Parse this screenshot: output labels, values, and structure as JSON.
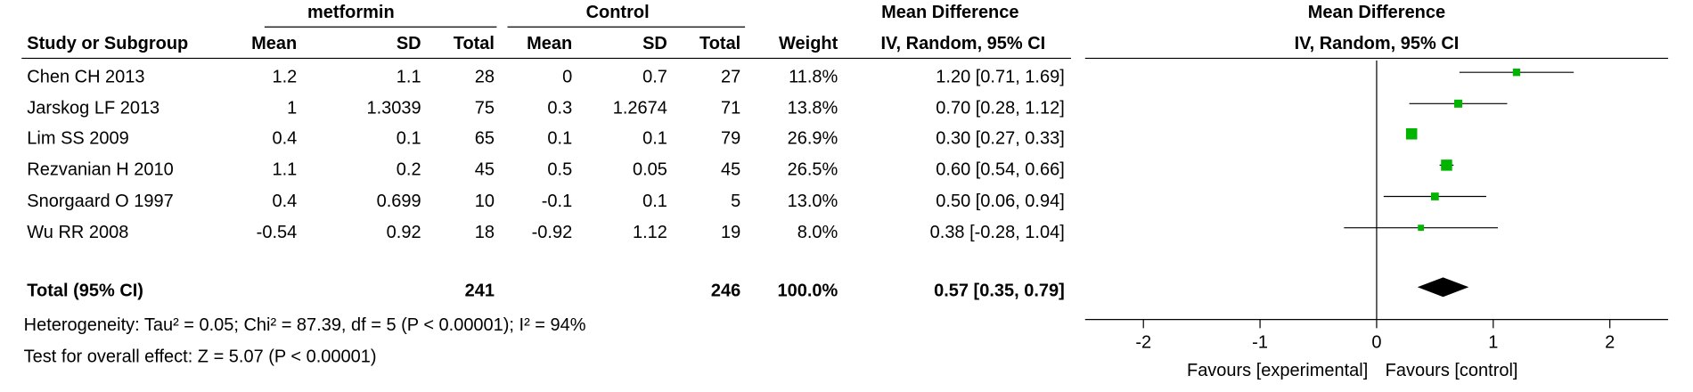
{
  "chart_data": {
    "type": "forest",
    "group_labels": [
      "metformin",
      "Control"
    ],
    "effect_header": "Mean Difference",
    "effect_method": "IV, Random, 95% CI",
    "column_headers": [
      "Study or Subgroup",
      "Mean",
      "SD",
      "Total",
      "Mean",
      "SD",
      "Total",
      "Weight"
    ],
    "studies": [
      "Chen CH 2013",
      "Jarskog LF 2013",
      "Lim SS 2009",
      "Rezvanian H 2010",
      "Snorgaard O 1997",
      "Wu RR 2008"
    ],
    "exp_mean": [
      1.2,
      1,
      0.4,
      1.1,
      0.4,
      -0.54
    ],
    "exp_sd": [
      1.1,
      1.3039,
      0.1,
      0.2,
      0.699,
      0.92
    ],
    "exp_total": [
      28,
      75,
      65,
      45,
      10,
      18
    ],
    "ctl_mean": [
      0,
      0.3,
      0.1,
      0.5,
      -0.1,
      -0.92
    ],
    "ctl_sd": [
      0.7,
      1.2674,
      0.1,
      0.05,
      0.1,
      1.12
    ],
    "ctl_total": [
      27,
      71,
      79,
      45,
      5,
      19
    ],
    "weight": [
      11.8,
      13.8,
      26.9,
      26.5,
      13.0,
      8.0
    ],
    "weight_labels": [
      "11.8%",
      "13.8%",
      "26.9%",
      "26.5%",
      "13.0%",
      "8.0%"
    ],
    "md": [
      1.2,
      0.7,
      0.3,
      0.6,
      0.5,
      0.38
    ],
    "ci_low": [
      0.71,
      0.28,
      0.27,
      0.54,
      0.06,
      -0.28
    ],
    "ci_high": [
      1.69,
      1.12,
      0.33,
      0.66,
      0.94,
      1.04
    ],
    "ci_labels": [
      "1.20 [0.71, 1.69]",
      "0.70 [0.28, 1.12]",
      "0.30 [0.27, 0.33]",
      "0.60 [0.54, 0.66]",
      "0.50 [0.06, 0.94]",
      "0.38 [-0.28, 1.04]"
    ],
    "total": {
      "label": "Total (95% CI)",
      "exp_total": 241,
      "ctl_total": 246,
      "weight": 100,
      "weight_label": "100.0%",
      "md": 0.57,
      "ci_low": 0.35,
      "ci_high": 0.79,
      "ci_label": "0.57 [0.35, 0.79]"
    },
    "heterogeneity": "Heterogeneity: Tau² = 0.05; Chi² = 87.39, df = 5 (P < 0.00001); I² = 94%",
    "overall_effect": "Test for overall effect: Z = 5.07 (P < 0.00001)",
    "xlim": [
      -2.5,
      2.5
    ],
    "xticks": [
      -2,
      -1,
      0,
      1,
      2
    ],
    "favours_left": "Favours [experimental]",
    "favours_right": "Favours [control]",
    "marker_color": "#00b400",
    "diamond_color": "#000000"
  }
}
